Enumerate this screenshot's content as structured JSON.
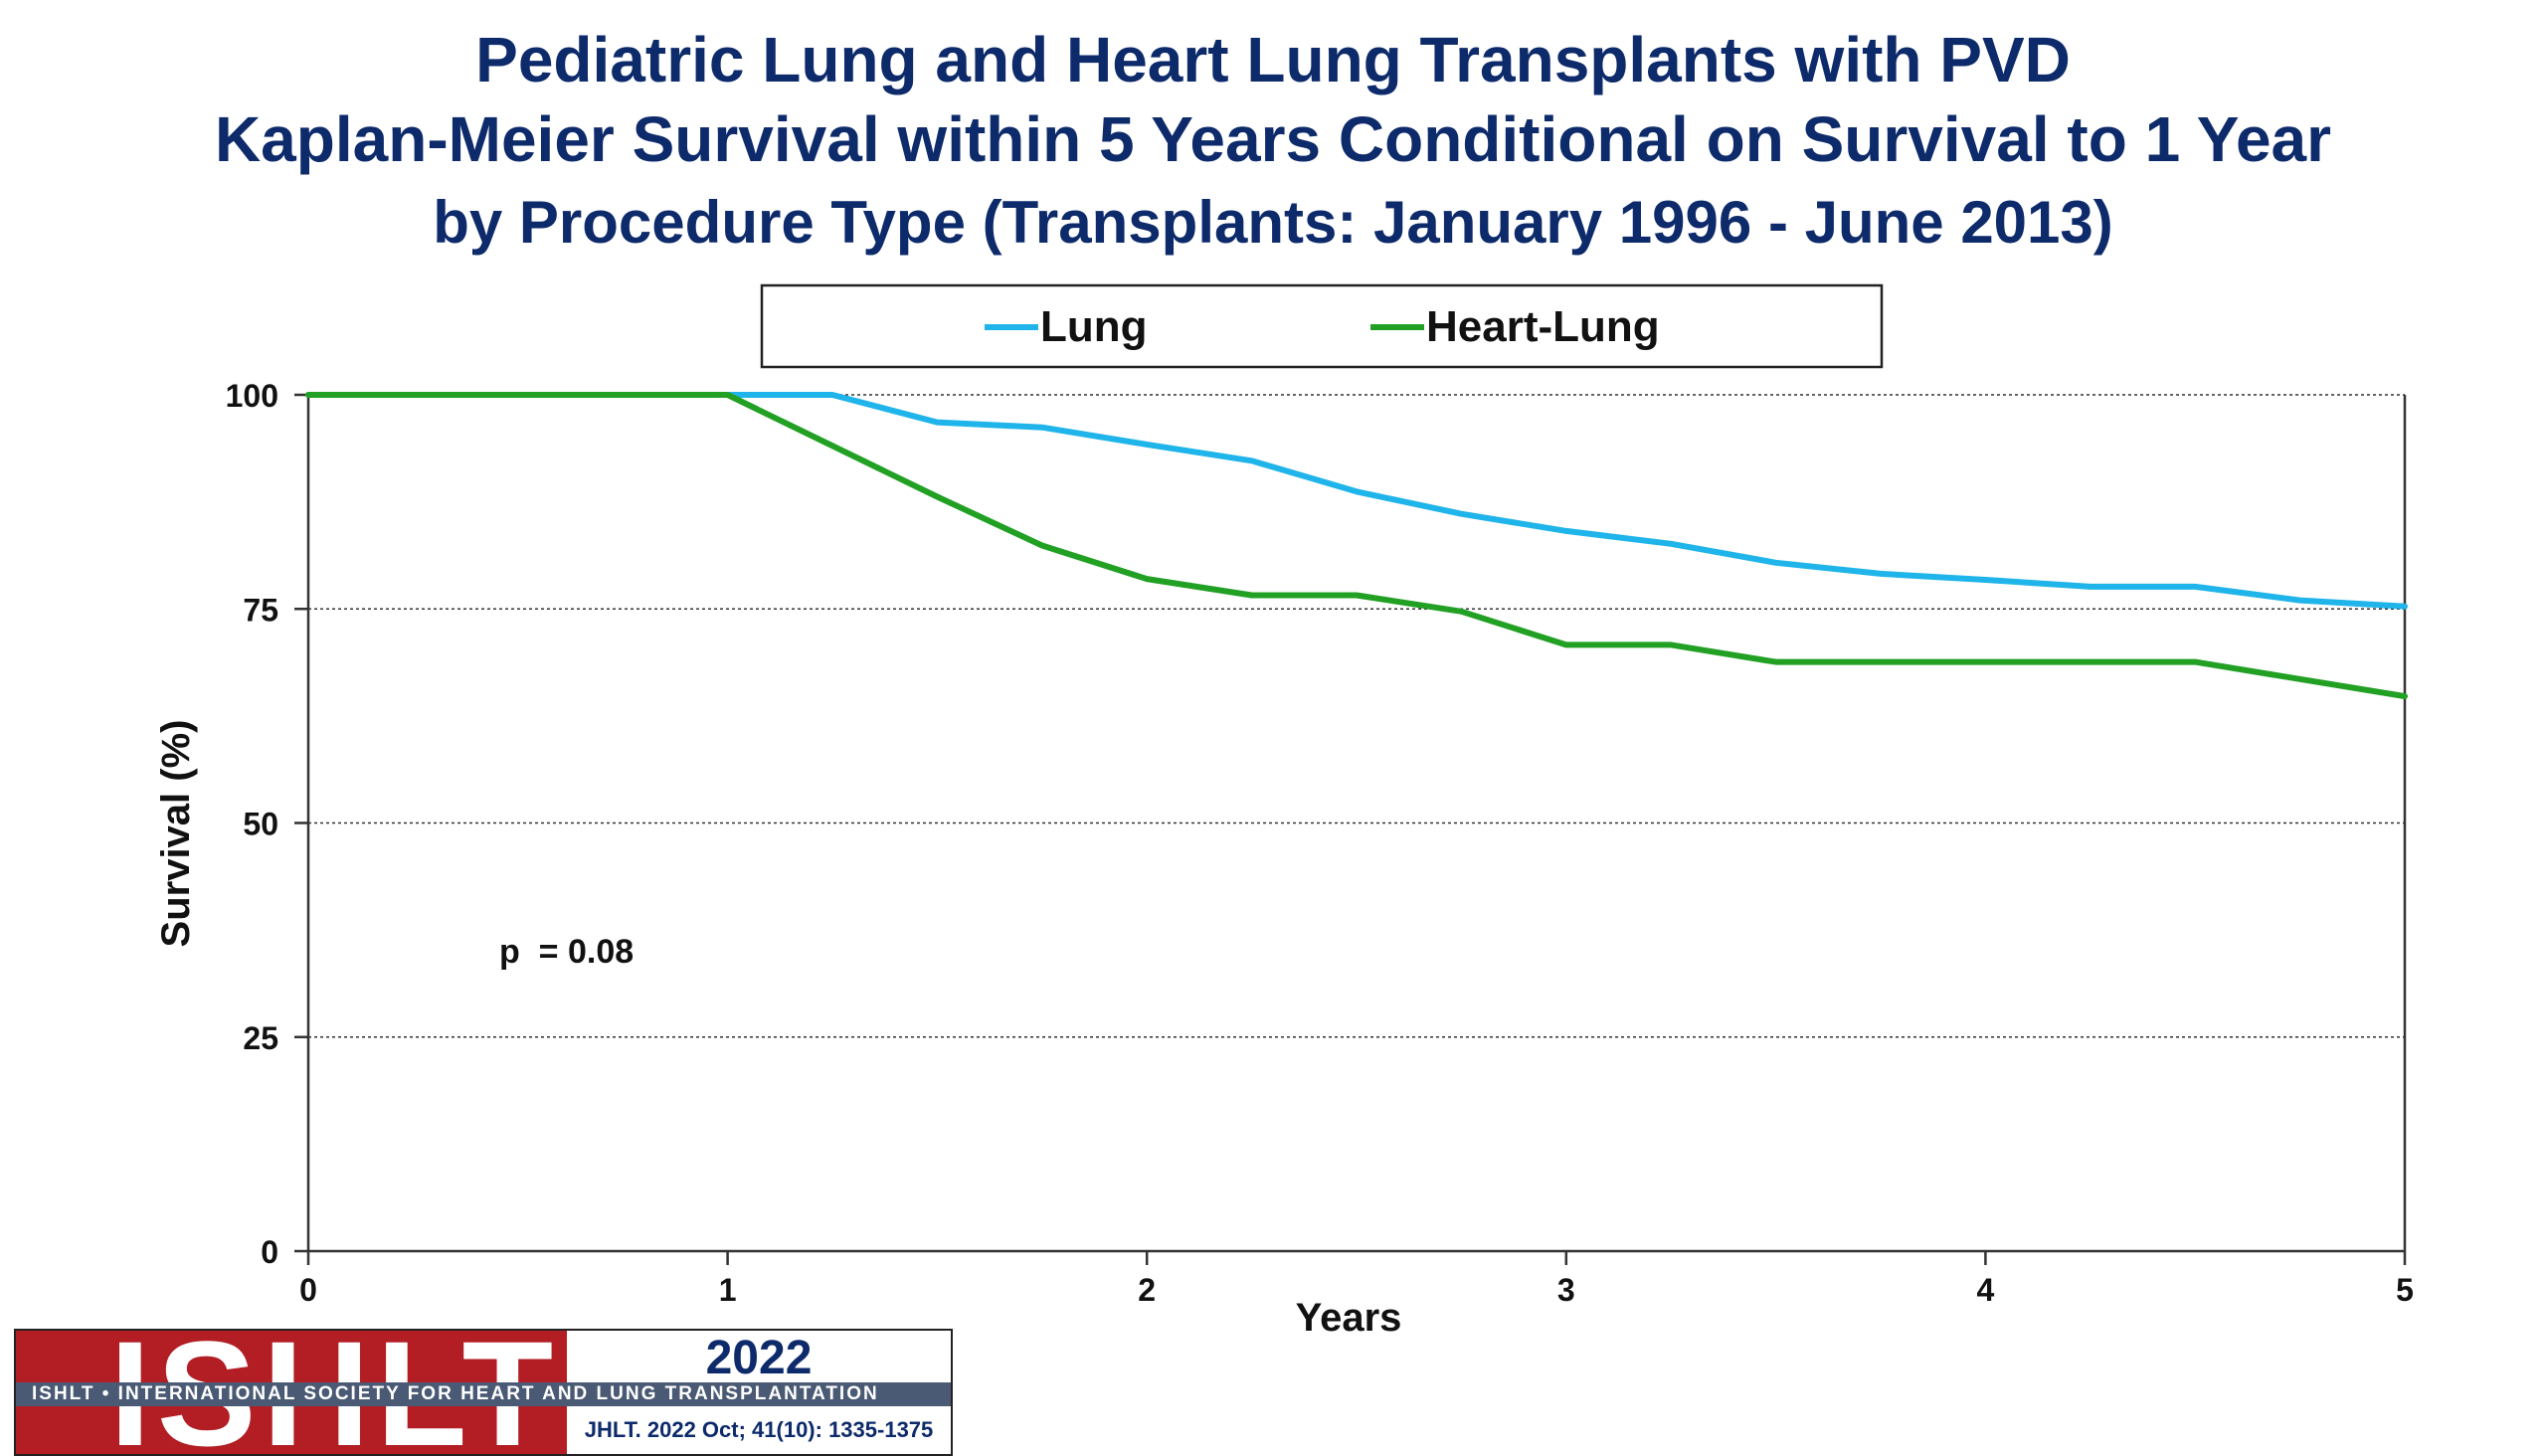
{
  "title": {
    "line1": "Pediatric Lung and Heart Lung Transplants with PVD",
    "line2": "Kaplan-Meier Survival within 5 Years Conditional on Survival to 1 Year",
    "line3": "by Procedure Type (Transplants: January 1996 - June 2013)"
  },
  "chart_data": {
    "type": "line",
    "xlabel": "Years",
    "ylabel": "Survival (%)",
    "xlim": [
      0,
      5
    ],
    "ylim": [
      0,
      100
    ],
    "x_ticks": [
      "0",
      "1",
      "2",
      "3",
      "4",
      "5"
    ],
    "y_ticks": [
      "0",
      "25",
      "50",
      "75",
      "100"
    ],
    "grid": "horizontal dotted at 25, 50, 75, 100",
    "legend_position": "top-center",
    "annotation": "p  = 0.08",
    "series": [
      {
        "name": "Lung",
        "color": "#1fb4ea",
        "x": [
          0,
          1,
          1.25,
          1.5,
          1.75,
          2,
          2.25,
          2.5,
          2.75,
          3,
          3.25,
          3.5,
          3.75,
          4,
          4.25,
          4.5,
          4.75,
          5
        ],
        "y": [
          100,
          100,
          100,
          96.8,
          96.2,
          94.2,
          92.3,
          88.7,
          86.1,
          84.1,
          82.6,
          80.4,
          79.1,
          78.4,
          77.6,
          77.6,
          76.0,
          75.3
        ]
      },
      {
        "name": "Heart-Lung",
        "color": "#21a024",
        "x": [
          0,
          1,
          1.5,
          1.75,
          2,
          2.25,
          2.5,
          2.75,
          3,
          3.25,
          3.5,
          3.75,
          4,
          4.25,
          4.5,
          5
        ],
        "y": [
          100,
          100,
          88.1,
          82.4,
          78.5,
          76.6,
          76.6,
          74.7,
          70.8,
          70.8,
          68.8,
          68.8,
          68.8,
          68.8,
          68.8,
          64.8
        ]
      }
    ]
  },
  "logo": {
    "letters": "ISHLT",
    "band": "ISHLT • INTERNATIONAL SOCIETY FOR HEART AND LUNG TRANSPLANTATION",
    "year": "2022",
    "citation": "JHLT. 2022 Oct; 41(10): 1335-1375"
  },
  "colors": {
    "title": "#0d2a6b",
    "lung": "#1fb4ea",
    "heart_lung": "#21a024",
    "logo_red": "#b21e24"
  }
}
